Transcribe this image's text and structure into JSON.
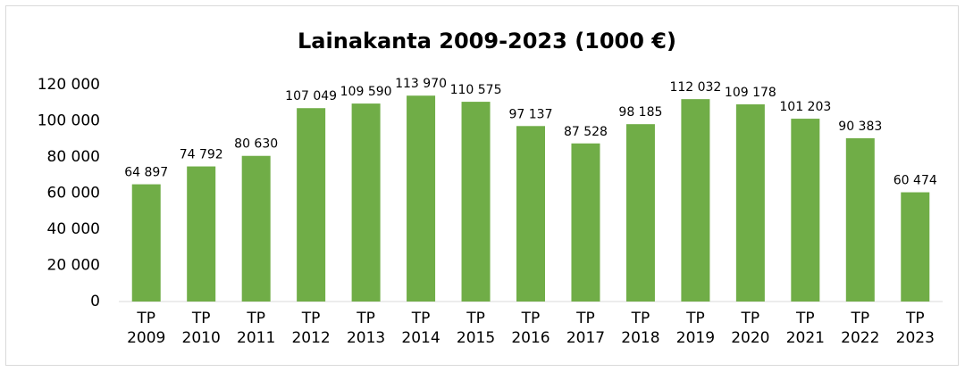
{
  "chart_data": {
    "type": "bar",
    "title": "Lainakanta 2009-2023 (1000 €)",
    "categories": [
      "TP 2009",
      "TP 2010",
      "TP 2011",
      "TP 2012",
      "TP 2013",
      "TP 2014",
      "TP 2015",
      "TP 2016",
      "TP 2017",
      "TP 2018",
      "TP 2019",
      "TP 2020",
      "TP 2021",
      "TP 2022",
      "TP 2023"
    ],
    "values": [
      64897,
      74792,
      80630,
      107049,
      109590,
      113970,
      110575,
      97137,
      87528,
      98185,
      112032,
      109178,
      101203,
      90383,
      60474
    ],
    "value_labels": [
      "64 897",
      "74 792",
      "80 630",
      "107 049",
      "109 590",
      "113 970",
      "110 575",
      "97 137",
      "87 528",
      "98 185",
      "112 032",
      "109 178",
      "101 203",
      "90 383",
      "60 474"
    ],
    "color": "#70ad47",
    "ylim": [
      0,
      120000
    ],
    "yticks": [
      0,
      {
        "value": 20000,
        "label": "20 000"
      },
      {
        "value": 40000,
        "label": "40 000"
      },
      {
        "value": 60000,
        "label": "60 000"
      },
      {
        "value": 80000,
        "label": "80 000"
      },
      {
        "value": 100000,
        "label": "100 000"
      },
      {
        "value": 120000,
        "label": "120 000"
      }
    ],
    "grid": false
  }
}
